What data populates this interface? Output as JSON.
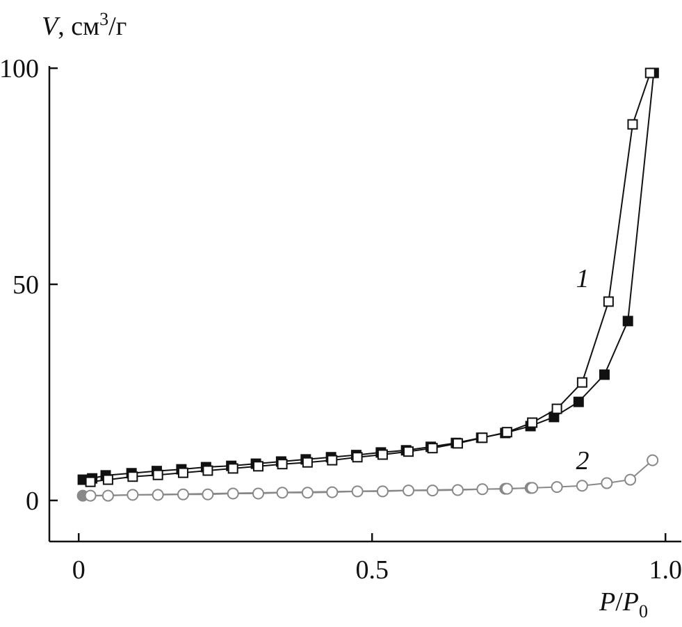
{
  "chart_data": {
    "type": "scatter",
    "ylabel": [
      "V",
      ", см",
      "3",
      "/г"
    ],
    "xlabel": [
      "P",
      "/",
      "P",
      "0"
    ],
    "xlim": [
      -0.05,
      1.027
    ],
    "ylim": [
      -9.5,
      100.5
    ],
    "xticks": [
      0,
      0.5,
      {
        "value": 1,
        "label": "1.0"
      }
    ],
    "yticks": [
      0,
      50,
      100
    ],
    "annotations": [
      "1",
      "2"
    ],
    "series": [
      {
        "color": "#111111",
        "marker": "square",
        "fill": "#111111",
        "x": [
          0.007,
          0.023,
          0.046,
          0.09,
          0.133,
          0.175,
          0.217,
          0.26,
          0.302,
          0.345,
          0.387,
          0.43,
          0.473,
          0.515,
          0.558,
          0.6,
          0.643,
          0.686,
          0.727,
          0.77,
          0.81,
          0.852,
          0.896,
          0.936,
          0.98
        ],
        "values": [
          4.8,
          5.1,
          5.8,
          6.3,
          6.8,
          7.2,
          7.7,
          8.0,
          8.5,
          9.0,
          9.5,
          10.0,
          10.5,
          11.1,
          11.6,
          12.4,
          13.3,
          14.5,
          15.6,
          17.2,
          19.3,
          22.8,
          29.1,
          41.5,
          98.9
        ]
      },
      {
        "color": "#111111",
        "marker": "square",
        "fill": "#ffffff",
        "x": [
          0.02,
          0.05,
          0.092,
          0.135,
          0.178,
          0.22,
          0.263,
          0.306,
          0.347,
          0.39,
          0.432,
          0.475,
          0.518,
          0.562,
          0.603,
          0.646,
          0.688,
          0.73,
          0.773,
          0.815,
          0.858,
          0.903,
          0.944,
          0.974
        ],
        "values": [
          4.3,
          4.8,
          5.5,
          5.9,
          6.4,
          6.9,
          7.4,
          7.9,
          8.4,
          8.8,
          9.3,
          10.0,
          10.6,
          11.3,
          12.1,
          13.2,
          14.5,
          15.8,
          18.0,
          21.2,
          27.3,
          46.0,
          87.0,
          98.9
        ]
      },
      {
        "color": "#888888",
        "marker": "circle",
        "fill": "#888888",
        "x": [
          0.007,
          0.727,
          0.77
        ],
        "values": [
          1.1,
          2.7,
          2.9
        ]
      },
      {
        "color": "#888888",
        "marker": "circle",
        "fill": "#ffffff",
        "x": [
          0.02,
          0.05,
          0.092,
          0.135,
          0.178,
          0.22,
          0.263,
          0.306,
          0.347,
          0.39,
          0.432,
          0.475,
          0.518,
          0.562,
          0.603,
          0.646,
          0.688,
          0.73,
          0.773,
          0.815,
          0.858,
          0.9,
          0.94,
          0.978
        ],
        "values": [
          1.1,
          1.1,
          1.3,
          1.3,
          1.4,
          1.4,
          1.6,
          1.6,
          1.8,
          1.8,
          1.9,
          2.1,
          2.1,
          2.3,
          2.3,
          2.4,
          2.6,
          2.7,
          2.9,
          3.1,
          3.4,
          4.0,
          4.8,
          9.3
        ]
      }
    ]
  }
}
